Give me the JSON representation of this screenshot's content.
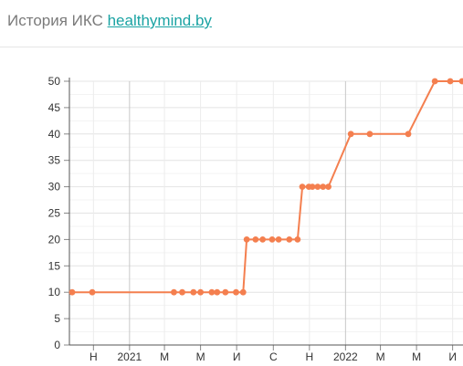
{
  "header": {
    "title": "История ИКС",
    "site_link": "healthymind.by"
  },
  "chart_data": {
    "type": "line",
    "title": "История ИКС",
    "xlabel": "",
    "ylabel": "",
    "ylim": [
      0,
      50
    ],
    "y_ticks": [
      0,
      5,
      10,
      15,
      20,
      25,
      30,
      35,
      40,
      45,
      50
    ],
    "x_ticks": [
      {
        "label": "Н",
        "date": "2020-11-01",
        "major": false
      },
      {
        "label": "2021",
        "date": "2021-01-01",
        "major": true
      },
      {
        "label": "М",
        "date": "2021-03-01",
        "major": false
      },
      {
        "label": "М",
        "date": "2021-05-01",
        "major": false
      },
      {
        "label": "И",
        "date": "2021-07-01",
        "major": false
      },
      {
        "label": "С",
        "date": "2021-09-01",
        "major": false
      },
      {
        "label": "Н",
        "date": "2021-11-01",
        "major": false
      },
      {
        "label": "2022",
        "date": "2022-01-01",
        "major": true
      },
      {
        "label": "М",
        "date": "2022-03-01",
        "major": false
      },
      {
        "label": "М",
        "date": "2022-05-01",
        "major": false
      },
      {
        "label": "И",
        "date": "2022-07-01",
        "major": false
      }
    ],
    "grid": true,
    "line_color": "#f47f4f",
    "series": [
      {
        "name": "ИКС",
        "points": [
          {
            "x": "2020-09-26",
            "y": 10
          },
          {
            "x": "2020-10-30",
            "y": 10
          },
          {
            "x": "2021-03-17",
            "y": 10
          },
          {
            "x": "2021-03-31",
            "y": 10
          },
          {
            "x": "2021-04-19",
            "y": 10
          },
          {
            "x": "2021-05-01",
            "y": 10
          },
          {
            "x": "2021-05-20",
            "y": 10
          },
          {
            "x": "2021-05-29",
            "y": 10
          },
          {
            "x": "2021-06-12",
            "y": 10
          },
          {
            "x": "2021-06-30",
            "y": 10
          },
          {
            "x": "2021-07-12",
            "y": 10
          },
          {
            "x": "2021-07-18",
            "y": 20
          },
          {
            "x": "2021-08-02",
            "y": 20
          },
          {
            "x": "2021-08-14",
            "y": 20
          },
          {
            "x": "2021-08-30",
            "y": 20
          },
          {
            "x": "2021-09-10",
            "y": 20
          },
          {
            "x": "2021-09-28",
            "y": 20
          },
          {
            "x": "2021-10-12",
            "y": 20
          },
          {
            "x": "2021-10-20",
            "y": 30
          },
          {
            "x": "2021-10-31",
            "y": 30
          },
          {
            "x": "2021-11-06",
            "y": 30
          },
          {
            "x": "2021-11-15",
            "y": 30
          },
          {
            "x": "2021-11-24",
            "y": 30
          },
          {
            "x": "2021-12-03",
            "y": 30
          },
          {
            "x": "2022-01-10",
            "y": 40
          },
          {
            "x": "2022-02-11",
            "y": 40
          },
          {
            "x": "2022-04-17",
            "y": 40
          },
          {
            "x": "2022-06-01",
            "y": 50
          },
          {
            "x": "2022-06-27",
            "y": 50
          },
          {
            "x": "2022-07-17",
            "y": 50
          }
        ]
      }
    ]
  }
}
